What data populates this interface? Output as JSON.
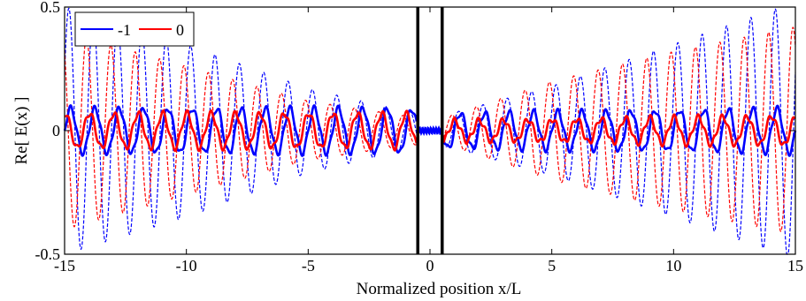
{
  "chart_data": {
    "type": "line",
    "title": "",
    "xlabel": "Normalized position  x/L",
    "ylabel": "Re[ E(x) ]",
    "xlim": [
      -15,
      15
    ],
    "ylim": [
      -0.5,
      0.5
    ],
    "x_ticks": [
      -15,
      -10,
      -5,
      0,
      5,
      10,
      15
    ],
    "x_tick_labels": [
      "-15",
      "-10",
      "-5",
      "0",
      "5",
      "10",
      "15"
    ],
    "y_ticks": [
      -0.5,
      0,
      0.5
    ],
    "y_tick_labels": [
      "-0.5",
      "0",
      "0.5"
    ],
    "grid": false,
    "legend": {
      "position": "top-left",
      "entries": [
        "-1",
        "0"
      ]
    },
    "slab_boundaries": [
      -0.5,
      0.5
    ],
    "series": [
      {
        "name": "-1",
        "style": "solid",
        "color": "#0000ff",
        "period": 1.0,
        "envelope_x": [
          -15,
          -1,
          0.5,
          15
        ],
        "envelope_amp": [
          0.09,
          0.09,
          0.07,
          0.09
        ],
        "description_values": [
          {
            "x": -14,
            "amp": 0.09
          },
          {
            "x": -7,
            "amp": 0.09
          },
          {
            "x": -1,
            "amp": 0.09
          },
          {
            "x": 1,
            "amp": 0.08
          },
          {
            "x": 7,
            "amp": 0.09
          },
          {
            "x": 14,
            "amp": 0.09
          }
        ]
      },
      {
        "name": "0",
        "style": "solid",
        "color": "#ff0000",
        "period": 1.0,
        "envelope_x": [
          -15,
          -1,
          0.5,
          15
        ],
        "envelope_amp": [
          0.07,
          0.07,
          0.04,
          0.06
        ],
        "description_values": [
          {
            "x": -14,
            "amp": 0.07
          },
          {
            "x": -7,
            "amp": 0.07
          },
          {
            "x": -1,
            "amp": 0.07
          },
          {
            "x": 1,
            "amp": 0.05
          },
          {
            "x": 7,
            "amp": 0.06
          },
          {
            "x": 14,
            "amp": 0.06
          }
        ]
      },
      {
        "name": "",
        "style": "dashed",
        "color": "#0000ff",
        "period": 1.0,
        "envelope_x": [
          -15,
          -10,
          -5,
          -1,
          0.5,
          5,
          10,
          15
        ],
        "envelope_amp": [
          0.5,
          0.35,
          0.17,
          0.08,
          0.06,
          0.18,
          0.35,
          0.52
        ]
      },
      {
        "name": "",
        "style": "dashed",
        "color": "#ff0000",
        "period": 1.0,
        "envelope_x": [
          -15,
          -10,
          -5,
          -1,
          0.5,
          5,
          10,
          15
        ],
        "envelope_amp": [
          0.4,
          0.26,
          0.12,
          0.06,
          0.05,
          0.2,
          0.32,
          0.42
        ]
      }
    ]
  }
}
